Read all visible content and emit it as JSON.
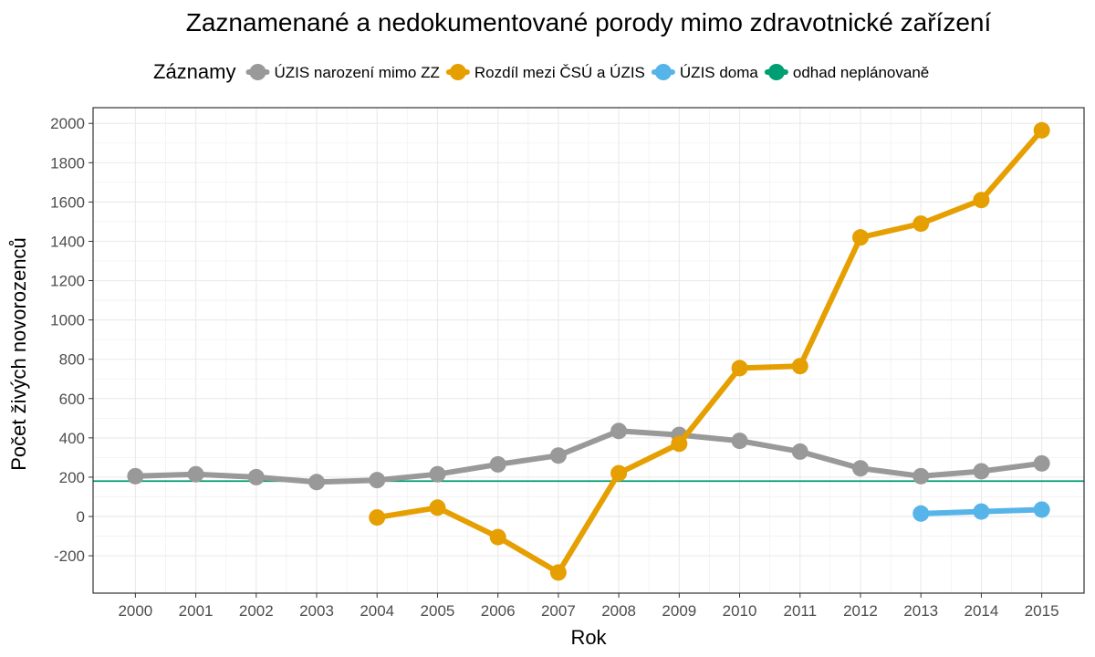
{
  "chart_data": {
    "type": "line",
    "title": "Zaznamenané a nedokumentované porody mimo zdravotnické zařízení",
    "xlabel": "Rok",
    "ylabel": "Počet živých novorozenců",
    "legend_title": "Záznamy",
    "legend_position": "top",
    "grid": true,
    "x": [
      2000,
      2001,
      2002,
      2003,
      2004,
      2005,
      2006,
      2007,
      2008,
      2009,
      2010,
      2011,
      2012,
      2013,
      2014,
      2015
    ],
    "x_ticks": [
      "2000",
      "2001",
      "2002",
      "2003",
      "2004",
      "2005",
      "2006",
      "2007",
      "2008",
      "2009",
      "2010",
      "2011",
      "2012",
      "2013",
      "2014",
      "2015"
    ],
    "y_ticks": [
      "-200",
      "0",
      "200",
      "400",
      "600",
      "800",
      "1000",
      "1200",
      "1400",
      "1600",
      "1800",
      "2000"
    ],
    "xlim": [
      1999.3,
      2015.7
    ],
    "ylim": [
      -390,
      2080
    ],
    "series": [
      {
        "name": "ÚZIS narození mimo ZZ",
        "color": "#999999",
        "x": [
          2000,
          2001,
          2002,
          2003,
          2004,
          2005,
          2006,
          2007,
          2008,
          2009,
          2010,
          2011,
          2012,
          2013,
          2014,
          2015
        ],
        "values": [
          205,
          215,
          200,
          175,
          185,
          215,
          265,
          310,
          435,
          415,
          385,
          330,
          245,
          205,
          230,
          270
        ]
      },
      {
        "name": "Rozdíl mezi ČSÚ a ÚZIS",
        "color": "#E69F00",
        "x": [
          2004,
          2005,
          2006,
          2007,
          2008,
          2009,
          2010,
          2011,
          2012,
          2013,
          2014,
          2015
        ],
        "values": [
          -5,
          45,
          -105,
          -285,
          220,
          370,
          755,
          765,
          1420,
          1490,
          1610,
          1965
        ]
      },
      {
        "name": "ÚZIS doma",
        "color": "#56B4E9",
        "x": [
          2013,
          2014,
          2015
        ],
        "values": [
          15,
          25,
          35
        ]
      },
      {
        "name": "odhad neplánovaně",
        "color": "#009E73",
        "hline": 180
      }
    ]
  }
}
